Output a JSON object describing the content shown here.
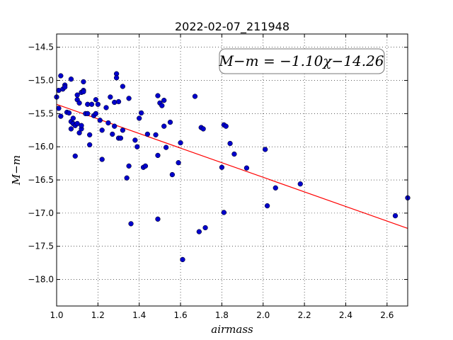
{
  "chart_data": {
    "type": "scatter",
    "title": "2022-02-07_211948",
    "xlabel": "airmass",
    "ylabel": "M−m",
    "xlim": [
      1.0,
      2.7
    ],
    "ylim": [
      -18.4,
      -14.3
    ],
    "y_inverted": true,
    "x_ticks": [
      1.0,
      1.2,
      1.4,
      1.6,
      1.8,
      2.0,
      2.2,
      2.4,
      2.6
    ],
    "x_tick_labels": [
      "1.0",
      "1.2",
      "1.4",
      "1.6",
      "1.8",
      "2.0",
      "2.2",
      "2.4",
      "2.6"
    ],
    "y_ticks": [
      -14.5,
      -15.0,
      -15.5,
      -16.0,
      -16.5,
      -17.0,
      -17.5,
      -18.0
    ],
    "y_tick_labels": [
      "−14.5",
      "−15.0",
      "−15.5",
      "−16.0",
      "−16.5",
      "−17.0",
      "−17.5",
      "−18.0"
    ],
    "grid": true,
    "annotation": "M−m = −1.10χ−14.26",
    "fit_line": {
      "slope": -1.1,
      "intercept": -14.26,
      "color": "#ff0000"
    },
    "marker_color": "#0000cc",
    "points": [
      [
        1.0,
        -15.25
      ],
      [
        1.01,
        -15.15
      ],
      [
        1.01,
        -15.42
      ],
      [
        1.02,
        -14.93
      ],
      [
        1.02,
        -15.54
      ],
      [
        1.03,
        -15.13
      ],
      [
        1.04,
        -15.07
      ],
      [
        1.04,
        -15.1
      ],
      [
        1.05,
        -15.48
      ],
      [
        1.06,
        -15.49
      ],
      [
        1.07,
        -15.73
      ],
      [
        1.07,
        -15.62
      ],
      [
        1.07,
        -14.98
      ],
      [
        1.08,
        -15.57
      ],
      [
        1.08,
        -15.65
      ],
      [
        1.09,
        -16.14
      ],
      [
        1.09,
        -15.68
      ],
      [
        1.1,
        -15.22
      ],
      [
        1.1,
        -15.29
      ],
      [
        1.1,
        -15.65
      ],
      [
        1.11,
        -15.34
      ],
      [
        1.11,
        -15.79
      ],
      [
        1.12,
        -15.73
      ],
      [
        1.12,
        -15.18
      ],
      [
        1.12,
        -15.68
      ],
      [
        1.13,
        -15.02
      ],
      [
        1.13,
        -15.15
      ],
      [
        1.13,
        -15.17
      ],
      [
        1.14,
        -15.5
      ],
      [
        1.15,
        -15.36
      ],
      [
        1.15,
        -15.5
      ],
      [
        1.16,
        -15.82
      ],
      [
        1.16,
        -15.97
      ],
      [
        1.17,
        -15.36
      ],
      [
        1.18,
        -15.53
      ],
      [
        1.19,
        -15.5
      ],
      [
        1.19,
        -15.29
      ],
      [
        1.2,
        -15.36
      ],
      [
        1.21,
        -15.6
      ],
      [
        1.22,
        -15.75
      ],
      [
        1.22,
        -16.19
      ],
      [
        1.24,
        -15.41
      ],
      [
        1.25,
        -15.64
      ],
      [
        1.26,
        -15.25
      ],
      [
        1.27,
        -15.81
      ],
      [
        1.28,
        -15.69
      ],
      [
        1.28,
        -15.33
      ],
      [
        1.29,
        -14.9
      ],
      [
        1.29,
        -14.96
      ],
      [
        1.3,
        -15.32
      ],
      [
        1.3,
        -15.87
      ],
      [
        1.31,
        -15.87
      ],
      [
        1.32,
        -15.75
      ],
      [
        1.32,
        -15.09
      ],
      [
        1.34,
        -16.47
      ],
      [
        1.35,
        -15.27
      ],
      [
        1.35,
        -16.29
      ],
      [
        1.36,
        -17.16
      ],
      [
        1.38,
        -15.9
      ],
      [
        1.39,
        -16.0
      ],
      [
        1.4,
        -15.57
      ],
      [
        1.41,
        -15.49
      ],
      [
        1.42,
        -16.31
      ],
      [
        1.43,
        -16.29
      ],
      [
        1.44,
        -15.81
      ],
      [
        1.48,
        -15.82
      ],
      [
        1.49,
        -16.13
      ],
      [
        1.49,
        -15.23
      ],
      [
        1.49,
        -17.09
      ],
      [
        1.5,
        -15.34
      ],
      [
        1.51,
        -15.38
      ],
      [
        1.52,
        -15.69
      ],
      [
        1.52,
        -15.3
      ],
      [
        1.53,
        -16.01
      ],
      [
        1.55,
        -15.63
      ],
      [
        1.56,
        -16.42
      ],
      [
        1.59,
        -16.24
      ],
      [
        1.6,
        -15.94
      ],
      [
        1.61,
        -17.7
      ],
      [
        1.67,
        -15.24
      ],
      [
        1.69,
        -17.28
      ],
      [
        1.7,
        -15.71
      ],
      [
        1.71,
        -15.73
      ],
      [
        1.72,
        -17.22
      ],
      [
        1.8,
        -16.31
      ],
      [
        1.81,
        -15.67
      ],
      [
        1.81,
        -16.99
      ],
      [
        1.82,
        -15.69
      ],
      [
        1.84,
        -15.95
      ],
      [
        1.86,
        -16.11
      ],
      [
        1.92,
        -16.32
      ],
      [
        2.01,
        -16.04
      ],
      [
        2.02,
        -16.89
      ],
      [
        2.06,
        -16.62
      ],
      [
        2.18,
        -16.56
      ],
      [
        2.64,
        -17.04
      ],
      [
        2.7,
        -16.77
      ]
    ]
  }
}
